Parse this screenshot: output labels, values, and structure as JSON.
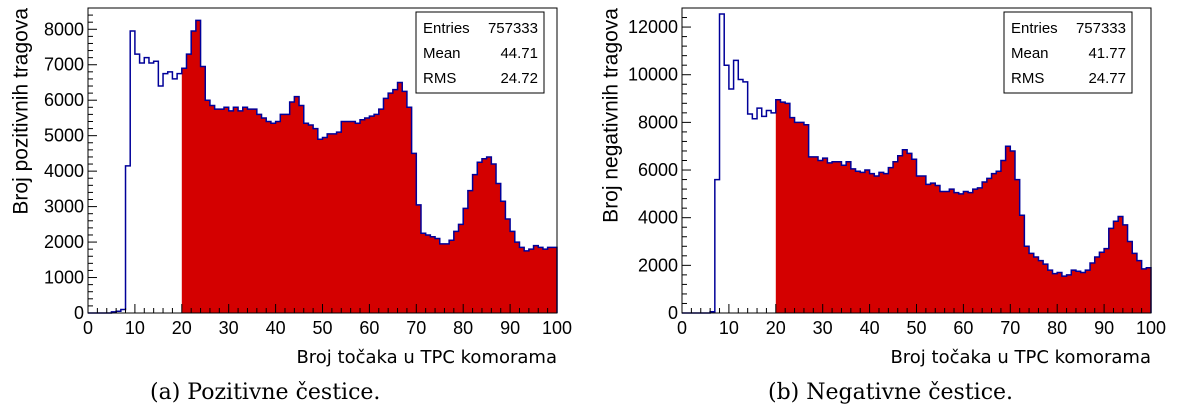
{
  "chart_data": [
    {
      "type": "histogram",
      "subfigure_label": "(a)",
      "caption": "Pozitivne čestice.",
      "xlabel": "Broj točaka u TPC komorama",
      "ylabel": "Broj pozitivnih tragova",
      "xlim": [
        0,
        100
      ],
      "ylim": [
        0,
        8600
      ],
      "bin_width": 1,
      "x_ticks": [
        0,
        10,
        20,
        30,
        40,
        50,
        60,
        70,
        80,
        90,
        100
      ],
      "y_ticks": [
        0,
        1000,
        2000,
        3000,
        4000,
        5000,
        6000,
        7000,
        8000
      ],
      "fill_from_x": 20,
      "fill_color": "#d40000",
      "line_color": "#000099",
      "stats": [
        {
          "label": "Entries",
          "value": "757333"
        },
        {
          "label": "Mean",
          "value": "44.71"
        },
        {
          "label": "RMS",
          "value": "24.72"
        }
      ],
      "values": [
        0,
        0,
        0,
        0,
        0,
        30,
        50,
        100,
        4150,
        7950,
        7300,
        7050,
        7200,
        7050,
        7100,
        6400,
        6750,
        6800,
        6600,
        6750,
        6900,
        7300,
        7950,
        8250,
        6950,
        6000,
        5850,
        5750,
        5750,
        5800,
        5700,
        5800,
        5700,
        5800,
        5750,
        5750,
        5600,
        5500,
        5400,
        5350,
        5400,
        5600,
        5600,
        5950,
        6100,
        5850,
        5350,
        5300,
        5200,
        4900,
        4950,
        5050,
        5050,
        5100,
        5400,
        5400,
        5400,
        5350,
        5450,
        5500,
        5550,
        5600,
        5750,
        6050,
        6200,
        6300,
        6500,
        6250,
        5800,
        4500,
        3050,
        2250,
        2200,
        2150,
        2100,
        1950,
        1950,
        2050,
        2300,
        2500,
        2950,
        3450,
        3900,
        4250,
        4350,
        4400,
        4200,
        3650,
        3150,
        2650,
        2300,
        2000,
        1850,
        1750,
        1800,
        1900,
        1850,
        1800,
        1850,
        1850
      ]
    },
    {
      "type": "histogram",
      "subfigure_label": "(b)",
      "caption": "Negativne čestice.",
      "xlabel": "Broj točaka u TPC komorama",
      "ylabel": "Broj negativnih tragova",
      "xlim": [
        0,
        100
      ],
      "ylim": [
        0,
        12800
      ],
      "bin_width": 1,
      "x_ticks": [
        0,
        10,
        20,
        30,
        40,
        50,
        60,
        70,
        80,
        90,
        100
      ],
      "y_ticks": [
        0,
        2000,
        4000,
        6000,
        8000,
        10000,
        12000
      ],
      "fill_from_x": 20,
      "fill_color": "#d40000",
      "line_color": "#000099",
      "stats": [
        {
          "label": "Entries",
          "value": "757333"
        },
        {
          "label": "Mean",
          "value": "41.77"
        },
        {
          "label": "RMS",
          "value": "24.77"
        }
      ],
      "values": [
        0,
        0,
        0,
        0,
        0,
        0,
        50,
        5600,
        12550,
        10400,
        9400,
        10600,
        9800,
        9700,
        8350,
        8150,
        8600,
        8250,
        8500,
        8400,
        8950,
        8850,
        8800,
        8200,
        8000,
        8000,
        7900,
        6550,
        6550,
        6400,
        6500,
        6300,
        6350,
        6350,
        6200,
        6350,
        6050,
        5950,
        5900,
        6000,
        5850,
        5750,
        5900,
        5850,
        6100,
        6350,
        6600,
        6850,
        6700,
        6450,
        5750,
        5750,
        5400,
        5450,
        5350,
        5100,
        5100,
        5200,
        5050,
        5000,
        5100,
        5050,
        5200,
        5250,
        5500,
        5650,
        5850,
        5950,
        6400,
        7000,
        6800,
        5600,
        4100,
        2800,
        2500,
        2350,
        2200,
        2050,
        1800,
        1650,
        1700,
        1550,
        1600,
        1800,
        1750,
        1700,
        1800,
        2100,
        2350,
        2550,
        2700,
        3550,
        3850,
        4050,
        3700,
        3000,
        2500,
        2200,
        1850,
        1900
      ]
    }
  ]
}
